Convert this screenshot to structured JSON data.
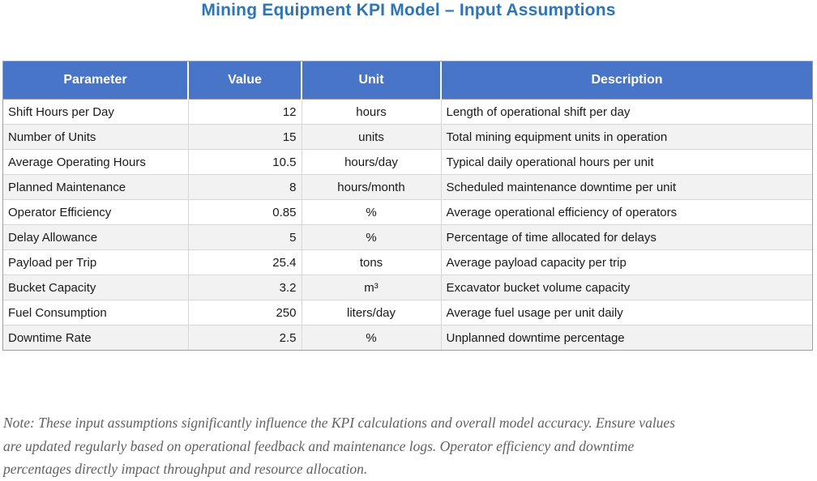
{
  "title": "Mining Equipment KPI Model – Input Assumptions",
  "colors": {
    "title_text": "#2E75B6",
    "header_background": "#4875C8",
    "header_text": "#FFFFFF",
    "row_stripe": "#F2F2F2",
    "body_text": "#1A1A1A",
    "note_text": "#616161",
    "table_border": "#9E9E9E",
    "cell_border": "#D6D6D6"
  },
  "table": {
    "columns": [
      "Parameter",
      "Value",
      "Unit",
      "Description"
    ],
    "rows": [
      {
        "parameter": "Shift Hours per Day",
        "value": "12",
        "unit": "hours",
        "description": "Length of operational shift per day"
      },
      {
        "parameter": "Number of Units",
        "value": "15",
        "unit": "units",
        "description": "Total mining equipment units in operation"
      },
      {
        "parameter": "Average Operating Hours",
        "value": "10.5",
        "unit": "hours/day",
        "description": "Typical daily operational hours per unit"
      },
      {
        "parameter": "Planned Maintenance",
        "value": "8",
        "unit": "hours/month",
        "description": "Scheduled maintenance downtime per unit"
      },
      {
        "parameter": "Operator Efficiency",
        "value": "0.85",
        "unit": "%",
        "description": "Average operational efficiency of operators"
      },
      {
        "parameter": "Delay Allowance",
        "value": "5",
        "unit": "%",
        "description": "Percentage of time allocated for delays"
      },
      {
        "parameter": "Payload per Trip",
        "value": "25.4",
        "unit": "tons",
        "description": "Average payload capacity per trip"
      },
      {
        "parameter": "Bucket Capacity",
        "value": "3.2",
        "unit": "m³",
        "description": "Excavator bucket volume capacity"
      },
      {
        "parameter": "Fuel Consumption",
        "value": "250",
        "unit": "liters/day",
        "description": "Average fuel usage per unit daily"
      },
      {
        "parameter": "Downtime Rate",
        "value": "2.5",
        "unit": "%",
        "description": "Unplanned downtime percentage"
      }
    ]
  },
  "note": {
    "lines": [
      "Note: These input assumptions significantly influence the KPI calculations and overall model accuracy. Ensure values",
      "are updated regularly based on operational feedback and maintenance logs. Operator efficiency and downtime",
      "percentages directly impact throughput and resource allocation."
    ]
  }
}
